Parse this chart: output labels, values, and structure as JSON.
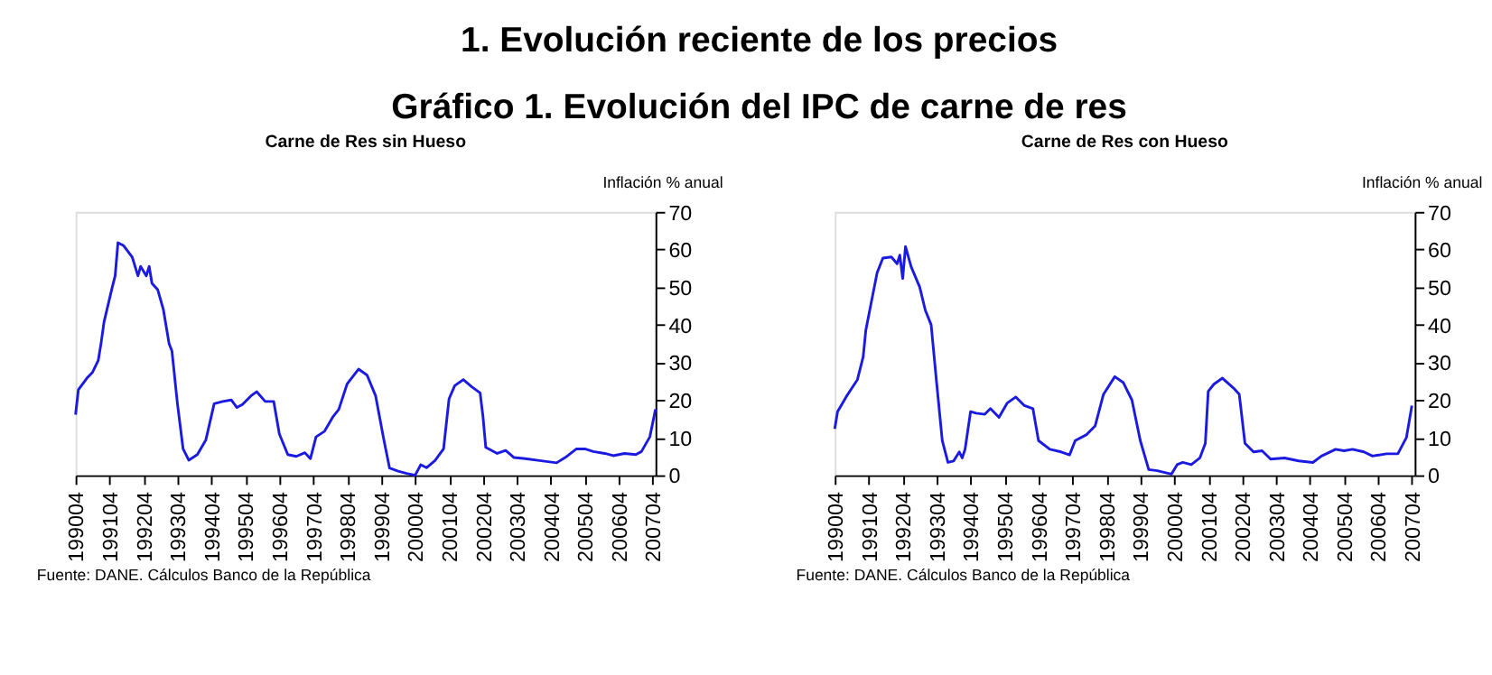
{
  "chart_data": [
    {
      "type": "line",
      "title": "Carne de Res sin Hueso",
      "ylabel": "Inflación % anual",
      "annotations": [
        "1.  Evolución reciente de los precios",
        "Gráfico 1. Evolución del IPC de carne de res",
        "Fuente: DANE. Cálculos Banco de la República"
      ],
      "x": [
        "1990-04",
        "1990-05",
        "1990-08",
        "1990-10",
        "1990-12",
        "1991-01",
        "1991-02",
        "1991-05",
        "1991-06",
        "1991-07",
        "1991-09",
        "1991-12",
        "1992-02",
        "1992-03",
        "1992-05",
        "1992-06",
        "1992-07",
        "1992-09",
        "1992-11",
        "1993-01",
        "1993-02",
        "1993-04",
        "1993-06",
        "1993-08",
        "1993-11",
        "1994-02",
        "1994-05",
        "1994-08",
        "1994-11",
        "1995-01",
        "1995-03",
        "1995-06",
        "1995-08",
        "1995-11",
        "1996-02",
        "1996-04",
        "1996-07",
        "1996-10",
        "1997-01",
        "1997-03",
        "1997-05",
        "1997-08",
        "1997-11",
        "1998-01",
        "1998-04",
        "1998-08",
        "1998-11",
        "1999-02",
        "1999-05",
        "1999-07",
        "1999-10",
        "2000-01",
        "2000-04",
        "2000-06",
        "2000-08",
        "2000-11",
        "2001-02",
        "2001-04",
        "2001-06",
        "2001-09",
        "2001-12",
        "2002-03",
        "2002-04",
        "2002-05",
        "2002-09",
        "2002-12",
        "2003-03",
        "2003-07",
        "2003-12",
        "2004-06",
        "2004-09",
        "2005-01",
        "2005-04",
        "2005-07",
        "2005-11",
        "2006-02",
        "2006-06",
        "2006-10",
        "2006-12",
        "2007-03",
        "2007-05"
      ],
      "series": [
        {
          "color": "#1a1ae0",
          "values": [
            16.1,
            22.7,
            25.8,
            27.4,
            30.5,
            35.2,
            40.7,
            50,
            53,
            61.8,
            61,
            58,
            53,
            55.5,
            53,
            55.5,
            51,
            49.3,
            44,
            35,
            33,
            19,
            7,
            4,
            5.5,
            9.4,
            19,
            19.6,
            20,
            18,
            18.8,
            21.1,
            22.2,
            19.6,
            19.6,
            11,
            5.5,
            5,
            6,
            4.4,
            10.2,
            11.7,
            15.6,
            17.5,
            24.3,
            28.2,
            26.6,
            21.1,
            9.4,
            1.9,
            1.1,
            0.5,
            0,
            2.8,
            2,
            3.9,
            7,
            20.3,
            23.8,
            25.4,
            23.5,
            21.9,
            15.6,
            7.4,
            5.8,
            6.6,
            4.7,
            4.4,
            3.9,
            3.3,
            4.7,
            7,
            7,
            6.3,
            5.8,
            5.2,
            5.8,
            5.5,
            6.3,
            10.2,
            17.5
          ]
        }
      ],
      "xlim": [
        "1990-04",
        "2007-05"
      ],
      "ylim": [
        0,
        70
      ],
      "yticks": [
        0,
        10,
        20,
        30,
        40,
        50,
        60,
        70
      ],
      "xticks": [
        {
          "value": "1990-04",
          "label": "199004"
        },
        {
          "value": "1991-04",
          "label": "199104"
        },
        {
          "value": "1992-04",
          "label": "199204"
        },
        {
          "value": "1993-04",
          "label": "199304"
        },
        {
          "value": "1994-04",
          "label": "199404"
        },
        {
          "value": "1995-04",
          "label": "199504"
        },
        {
          "value": "1996-04",
          "label": "199604"
        },
        {
          "value": "1997-04",
          "label": "199704"
        },
        {
          "value": "1998-04",
          "label": "199804"
        },
        {
          "value": "1999-04",
          "label": "199904"
        },
        {
          "value": "2000-04",
          "label": "200004"
        },
        {
          "value": "2001-04",
          "label": "200104"
        },
        {
          "value": "2002-04",
          "label": "200204"
        },
        {
          "value": "2003-04",
          "label": "200304"
        },
        {
          "value": "2004-04",
          "label": "200404"
        },
        {
          "value": "2005-04",
          "label": "200504"
        },
        {
          "value": "2006-04",
          "label": "200604"
        },
        {
          "value": "2007-04",
          "label": "200704"
        }
      ],
      "grid": false
    },
    {
      "type": "line",
      "title": "Carne de Res con Hueso",
      "ylabel": "Inflación % anual",
      "annotations": [
        "Fuente: DANE. Cálculos Banco de la República"
      ],
      "x": [
        "1990-04",
        "1990-05",
        "1990-08",
        "1990-10",
        "1990-12",
        "1991-02",
        "1991-03",
        "1991-05",
        "1991-07",
        "1991-09",
        "1991-12",
        "1992-02",
        "1992-03",
        "1992-04",
        "1992-05",
        "1992-07",
        "1992-10",
        "1992-12",
        "1993-02",
        "1993-04",
        "1993-06",
        "1993-08",
        "1993-10",
        "1993-12",
        "1994-01",
        "1994-02",
        "1994-04",
        "1994-06",
        "1994-09",
        "1994-11",
        "1995-02",
        "1995-05",
        "1995-08",
        "1995-11",
        "1996-02",
        "1996-04",
        "1996-08",
        "1996-12",
        "1997-03",
        "1997-05",
        "1997-09",
        "1997-12",
        "1998-03",
        "1998-07",
        "1998-10",
        "1999-01",
        "1999-04",
        "1999-07",
        "1999-10",
        "2000-03",
        "2000-05",
        "2000-07",
        "2000-10",
        "2001-01",
        "2001-03",
        "2001-04",
        "2001-06",
        "2001-09",
        "2002-01",
        "2002-03",
        "2002-05",
        "2002-08",
        "2002-11",
        "2003-02",
        "2003-07",
        "2003-12",
        "2004-05",
        "2004-08",
        "2005-01",
        "2005-04",
        "2005-07",
        "2005-11",
        "2006-02",
        "2006-07",
        "2006-11",
        "2007-02",
        "2007-04"
      ],
      "series": [
        {
          "color": "#1a1ae0",
          "values": [
            12.3,
            16.9,
            20.8,
            23.1,
            25.4,
            31.5,
            38.5,
            46.2,
            53.8,
            57.7,
            58,
            56.2,
            58.5,
            52.3,
            60.8,
            55.4,
            50,
            43.8,
            40,
            24.6,
            9.2,
            3.4,
            3.8,
            6.2,
            4.6,
            6.9,
            16.9,
            16.5,
            16.2,
            17.7,
            15.4,
            19.2,
            20.8,
            18.5,
            17.7,
            9.2,
            6.9,
            6.2,
            5.4,
            9.2,
            10.8,
            13.1,
            21.5,
            26.2,
            24.6,
            20,
            9.2,
            1.5,
            1.2,
            0.3,
            2.8,
            3.4,
            2.8,
            4.6,
            8.5,
            22.3,
            24.2,
            25.8,
            23.1,
            21.5,
            8.5,
            6.2,
            6.5,
            4.3,
            4.6,
            3.8,
            3.4,
            5.1,
            6.9,
            6.5,
            6.9,
            6.2,
            5.1,
            5.7,
            5.7,
            10,
            18.5
          ]
        }
      ],
      "xlim": [
        "1990-04",
        "2007-05"
      ],
      "ylim": [
        0,
        70
      ],
      "yticks": [
        0,
        10,
        20,
        30,
        40,
        50,
        60,
        70
      ],
      "xticks": [
        {
          "value": "1990-04",
          "label": "199004"
        },
        {
          "value": "1991-04",
          "label": "199104"
        },
        {
          "value": "1992-04",
          "label": "199204"
        },
        {
          "value": "1993-04",
          "label": "199304"
        },
        {
          "value": "1994-04",
          "label": "199404"
        },
        {
          "value": "1995-04",
          "label": "199504"
        },
        {
          "value": "1996-04",
          "label": "199604"
        },
        {
          "value": "1997-04",
          "label": "199704"
        },
        {
          "value": "1998-04",
          "label": "199804"
        },
        {
          "value": "1999-04",
          "label": "199904"
        },
        {
          "value": "2000-04",
          "label": "200004"
        },
        {
          "value": "2001-04",
          "label": "200104"
        },
        {
          "value": "2002-04",
          "label": "200204"
        },
        {
          "value": "2003-04",
          "label": "200304"
        },
        {
          "value": "2004-04",
          "label": "200404"
        },
        {
          "value": "2005-04",
          "label": "200504"
        },
        {
          "value": "2006-04",
          "label": "200604"
        },
        {
          "value": "2007-04",
          "label": "200704"
        }
      ],
      "grid": false
    }
  ]
}
